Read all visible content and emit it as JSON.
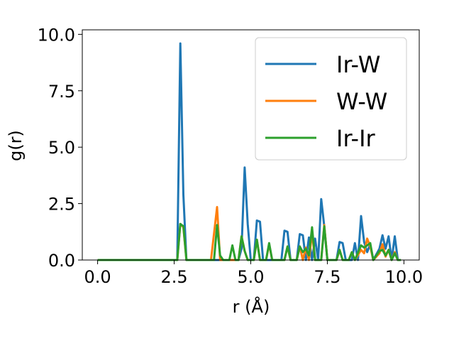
{
  "chart_data": {
    "type": "line",
    "title": "",
    "xlabel": "r (Å)",
    "ylabel": "g(r)",
    "xlim": [
      -0.5,
      10.5
    ],
    "ylim": [
      0,
      10.2
    ],
    "xticks": [
      0.0,
      2.5,
      5.0,
      7.5,
      10.0
    ],
    "yticks": [
      0.0,
      2.5,
      5.0,
      7.5,
      10.0
    ],
    "xtick_labels": [
      "0.0",
      "2.5",
      "5.0",
      "7.5",
      "10.0"
    ],
    "ytick_labels": [
      "0.0",
      "2.5",
      "5.0",
      "7.5",
      "10.0"
    ],
    "grid": false,
    "legend_position": "top-right",
    "series": [
      {
        "name": "Ir-W",
        "color": "#1f77b4",
        "points": [
          [
            0.0,
            0
          ],
          [
            2.6,
            0
          ],
          [
            2.7,
            9.6
          ],
          [
            2.8,
            2.9
          ],
          [
            2.9,
            0
          ],
          [
            4.6,
            0
          ],
          [
            4.7,
            0.5
          ],
          [
            4.8,
            4.1
          ],
          [
            4.9,
            1.6
          ],
          [
            5.0,
            0
          ],
          [
            5.1,
            0
          ],
          [
            5.2,
            1.75
          ],
          [
            5.3,
            1.7
          ],
          [
            5.4,
            0
          ],
          [
            6.0,
            0
          ],
          [
            6.1,
            1.3
          ],
          [
            6.2,
            1.25
          ],
          [
            6.3,
            0
          ],
          [
            6.5,
            0
          ],
          [
            6.6,
            1.15
          ],
          [
            6.7,
            1.1
          ],
          [
            6.8,
            0
          ],
          [
            6.9,
            1.0
          ],
          [
            7.0,
            0
          ],
          [
            7.1,
            0.95
          ],
          [
            7.2,
            0
          ],
          [
            7.3,
            2.7
          ],
          [
            7.4,
            1.5
          ],
          [
            7.5,
            0
          ],
          [
            7.8,
            0
          ],
          [
            7.9,
            0.8
          ],
          [
            8.0,
            0.75
          ],
          [
            8.1,
            0
          ],
          [
            8.3,
            0
          ],
          [
            8.4,
            0.75
          ],
          [
            8.5,
            0
          ],
          [
            8.6,
            1.95
          ],
          [
            8.7,
            0.8
          ],
          [
            8.8,
            0.35
          ],
          [
            8.9,
            0.7
          ],
          [
            9.0,
            0
          ],
          [
            9.2,
            0.5
          ],
          [
            9.3,
            1.1
          ],
          [
            9.4,
            0.5
          ],
          [
            9.5,
            1.05
          ],
          [
            9.6,
            0
          ],
          [
            9.7,
            1.05
          ],
          [
            9.8,
            0
          ],
          [
            9.9,
            0
          ]
        ]
      },
      {
        "name": "W-W",
        "color": "#ff7f0e",
        "points": [
          [
            0.0,
            0
          ],
          [
            2.6,
            0
          ],
          [
            2.7,
            1.6
          ],
          [
            2.8,
            1.45
          ],
          [
            2.9,
            0
          ],
          [
            3.7,
            0
          ],
          [
            3.9,
            2.35
          ],
          [
            4.0,
            0
          ],
          [
            4.6,
            0
          ],
          [
            4.7,
            1.05
          ],
          [
            4.8,
            0.4
          ],
          [
            4.9,
            0
          ],
          [
            5.1,
            0
          ],
          [
            5.2,
            0.9
          ],
          [
            5.3,
            0
          ],
          [
            5.5,
            0
          ],
          [
            5.6,
            0.7
          ],
          [
            5.7,
            0
          ],
          [
            6.1,
            0
          ],
          [
            6.2,
            0.6
          ],
          [
            6.3,
            0
          ],
          [
            6.5,
            0
          ],
          [
            6.6,
            0.6
          ],
          [
            6.7,
            0
          ],
          [
            6.8,
            0.55
          ],
          [
            6.9,
            0
          ],
          [
            7.0,
            1.2
          ],
          [
            7.1,
            0
          ],
          [
            7.3,
            0
          ],
          [
            7.4,
            1.55
          ],
          [
            7.5,
            0
          ],
          [
            7.8,
            0
          ],
          [
            7.9,
            0.45
          ],
          [
            8.0,
            0
          ],
          [
            8.2,
            0
          ],
          [
            8.3,
            0.35
          ],
          [
            8.4,
            0
          ],
          [
            8.6,
            0.45
          ],
          [
            8.7,
            0.3
          ],
          [
            8.8,
            0.95
          ],
          [
            8.9,
            0.6
          ],
          [
            9.0,
            0
          ],
          [
            9.2,
            0.3
          ],
          [
            9.3,
            0.7
          ],
          [
            9.4,
            0.15
          ],
          [
            9.5,
            0.45
          ],
          [
            9.6,
            0
          ],
          [
            9.7,
            0.35
          ],
          [
            9.8,
            0
          ],
          [
            9.9,
            0
          ]
        ]
      },
      {
        "name": "Ir-Ir",
        "color": "#2ca02c",
        "points": [
          [
            0.0,
            0
          ],
          [
            2.6,
            0
          ],
          [
            2.7,
            1.6
          ],
          [
            2.8,
            1.5
          ],
          [
            2.9,
            0
          ],
          [
            3.8,
            0
          ],
          [
            3.9,
            1.55
          ],
          [
            4.0,
            0.2
          ],
          [
            4.1,
            0
          ],
          [
            4.3,
            0
          ],
          [
            4.4,
            0.65
          ],
          [
            4.5,
            0
          ],
          [
            4.6,
            0
          ],
          [
            4.7,
            1.05
          ],
          [
            4.8,
            0.4
          ],
          [
            4.9,
            0
          ],
          [
            5.1,
            0
          ],
          [
            5.2,
            0.9
          ],
          [
            5.3,
            0
          ],
          [
            5.5,
            0
          ],
          [
            5.6,
            0.75
          ],
          [
            5.7,
            0
          ],
          [
            6.1,
            0
          ],
          [
            6.2,
            0.6
          ],
          [
            6.3,
            0
          ],
          [
            6.5,
            0
          ],
          [
            6.6,
            0.6
          ],
          [
            6.7,
            0.35
          ],
          [
            6.8,
            0.5
          ],
          [
            6.9,
            0.2
          ],
          [
            7.0,
            1.45
          ],
          [
            7.1,
            0
          ],
          [
            7.3,
            0
          ],
          [
            7.4,
            1.5
          ],
          [
            7.5,
            0
          ],
          [
            7.8,
            0
          ],
          [
            7.9,
            0.45
          ],
          [
            8.0,
            0
          ],
          [
            8.2,
            0
          ],
          [
            8.3,
            0.35
          ],
          [
            8.4,
            0
          ],
          [
            8.6,
            0.65
          ],
          [
            8.7,
            0.55
          ],
          [
            8.8,
            0.65
          ],
          [
            8.9,
            0.75
          ],
          [
            9.0,
            0
          ],
          [
            9.2,
            0.4
          ],
          [
            9.3,
            0.45
          ],
          [
            9.4,
            0.2
          ],
          [
            9.5,
            0.45
          ],
          [
            9.6,
            0
          ],
          [
            9.7,
            0.3
          ],
          [
            9.8,
            0
          ],
          [
            9.9,
            0
          ]
        ]
      }
    ]
  }
}
